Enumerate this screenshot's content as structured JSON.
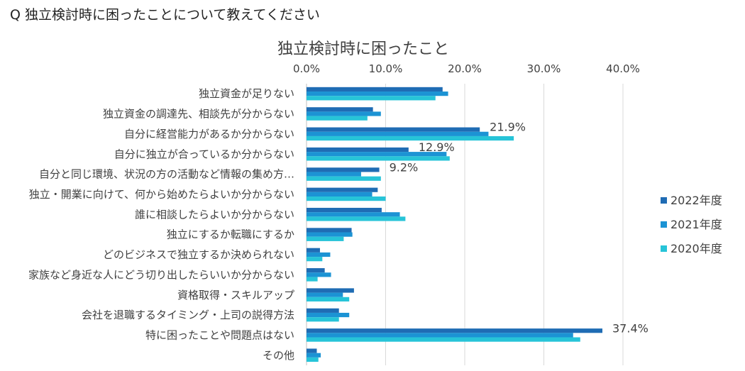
{
  "question": "Q  独立検討時に困ったことについて教えてください",
  "chart_data": {
    "type": "bar",
    "orientation": "horizontal",
    "title": "独立検討時に困ったこと",
    "xlabel": "",
    "ylabel": "",
    "xlim": [
      0,
      0.4
    ],
    "ticks": [
      0,
      0.1,
      0.2,
      0.3,
      0.4
    ],
    "tick_labels": [
      "0.0%",
      "10.0%",
      "20.0%",
      "30.0%",
      "40.0%"
    ],
    "grid": true,
    "legend_position": "right",
    "categories": [
      "独立資金が足りない",
      "独立資金の調達先、相談先が分からない",
      "自分に経営能力があるか分からない",
      "自分に独立が合っているか分からない",
      "自分と同じ環境、状況の方の活動など情報の集め方…",
      "独立・開業に向けて、何から始めたらよいか分からない",
      "誰に相談したらよいか分からない",
      "独立にするか転職にするか",
      "どのビジネスで独立するか決められない",
      "家族など身近な人にどう切り出したらいいか分からない",
      "資格取得・スキルアップ",
      "会社を退職するタイミング・上司の説得方法",
      "特に困ったことや問題点はない",
      "その他"
    ],
    "series": [
      {
        "name": "2022年度",
        "color": "#1f6cb4",
        "values": [
          0.172,
          0.084,
          0.219,
          0.129,
          0.092,
          0.09,
          0.095,
          0.057,
          0.017,
          0.023,
          0.06,
          0.041,
          0.374,
          0.013
        ]
      },
      {
        "name": "2021年度",
        "color": "#1c93d4",
        "values": [
          0.179,
          0.094,
          0.23,
          0.177,
          0.069,
          0.083,
          0.118,
          0.058,
          0.03,
          0.031,
          0.046,
          0.054,
          0.337,
          0.018
        ]
      },
      {
        "name": "2020年度",
        "color": "#27c4d8",
        "values": [
          0.163,
          0.077,
          0.262,
          0.181,
          0.094,
          0.1,
          0.125,
          0.047,
          0.02,
          0.014,
          0.054,
          0.041,
          0.346,
          0.015
        ]
      }
    ],
    "data_labels": [
      {
        "category_index": 2,
        "text": "21.9%"
      },
      {
        "category_index": 3,
        "text": "12.9%"
      },
      {
        "category_index": 4,
        "text": "9.2%"
      },
      {
        "category_index": 12,
        "text": "37.4%"
      }
    ]
  }
}
